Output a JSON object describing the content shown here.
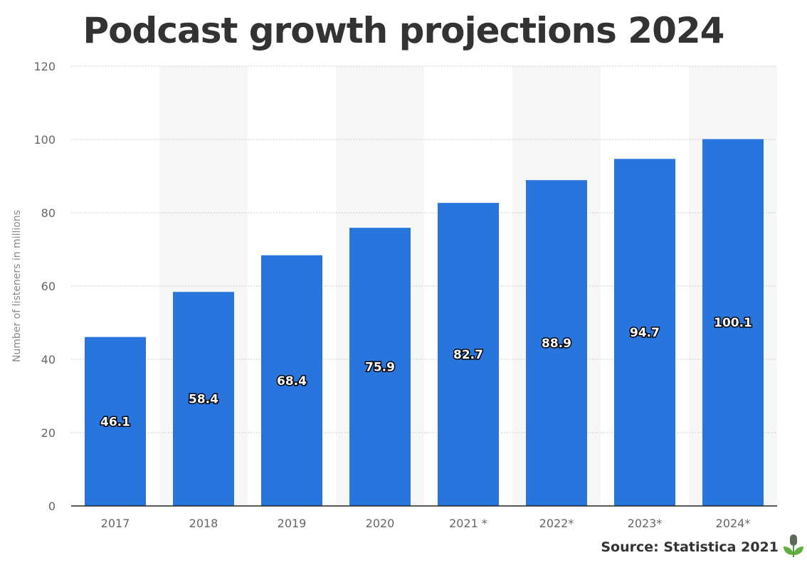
{
  "chart_data": {
    "type": "bar",
    "title": "Podcast growth projections 2024",
    "xlabel": "",
    "ylabel": "Number of listeners in millions",
    "categories": [
      "2017",
      "2018",
      "2019",
      "2020",
      "2021 *",
      "2022*",
      "2023*",
      "2024*"
    ],
    "values": [
      46.1,
      58.4,
      68.4,
      75.9,
      82.7,
      88.9,
      94.7,
      100.1
    ],
    "data_labels": [
      "46.1",
      "58.4",
      "68.4",
      "75.9",
      "82.7",
      "88.9",
      "94.7",
      "100.1"
    ],
    "ylim": [
      0,
      120
    ],
    "yticks": [
      0,
      20,
      40,
      60,
      80,
      100,
      120
    ],
    "grid": true,
    "bar_color": "#2876dd",
    "band_color": "#f7f7f7"
  },
  "source": "Source: Statistica 2021",
  "logo_icon": "podcast-microphone-plant-icon"
}
